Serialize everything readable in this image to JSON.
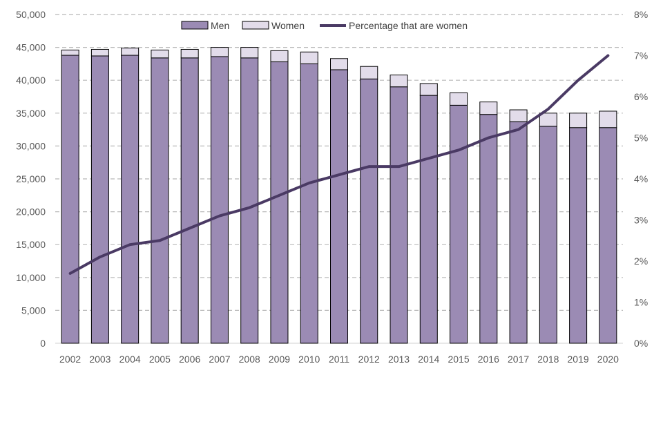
{
  "chart_data": {
    "type": "bar",
    "stacked": true,
    "categories": [
      "2002",
      "2003",
      "2004",
      "2005",
      "2006",
      "2007",
      "2008",
      "2009",
      "2010",
      "2011",
      "2012",
      "2013",
      "2014",
      "2015",
      "2016",
      "2017",
      "2018",
      "2019",
      "2020"
    ],
    "series": [
      {
        "name": "Men",
        "type": "bar",
        "axis": "left",
        "color": "#9b8bb4",
        "values": [
          43800,
          43700,
          43800,
          43400,
          43400,
          43600,
          43400,
          42800,
          42500,
          41600,
          40200,
          39000,
          37700,
          36200,
          34800,
          33700,
          33000,
          32800,
          32800
        ]
      },
      {
        "name": "Women",
        "type": "bar",
        "axis": "left",
        "color": "#e2dcea",
        "values": [
          800,
          1000,
          1100,
          1200,
          1300,
          1400,
          1600,
          1700,
          1800,
          1700,
          1900,
          1800,
          1800,
          1900,
          1900,
          1800,
          2000,
          2200,
          2500
        ]
      },
      {
        "name": "Percentage that are women",
        "type": "line",
        "axis": "right",
        "color": "#4a3a64",
        "values": [
          1.7,
          2.1,
          2.4,
          2.5,
          2.8,
          3.1,
          3.3,
          3.6,
          3.9,
          4.1,
          4.3,
          4.3,
          4.5,
          4.7,
          5.0,
          5.2,
          5.7,
          6.4,
          7.0
        ]
      }
    ],
    "y_left": {
      "min": 0,
      "max": 50000,
      "step": 5000,
      "tick_labels": [
        "0",
        "5,000",
        "10,000",
        "15,000",
        "20,000",
        "25,000",
        "30,000",
        "35,000",
        "40,000",
        "45,000",
        "50,000"
      ]
    },
    "y_right": {
      "min": 0,
      "max": 8,
      "step": 1,
      "tick_labels": [
        "0%",
        "1%",
        "2%",
        "3%",
        "4%",
        "5%",
        "6%",
        "7%",
        "8%"
      ]
    },
    "grid": "dashed-horizontal",
    "legend_position": "top-center",
    "title": "",
    "xlabel": "",
    "ylabel": ""
  }
}
